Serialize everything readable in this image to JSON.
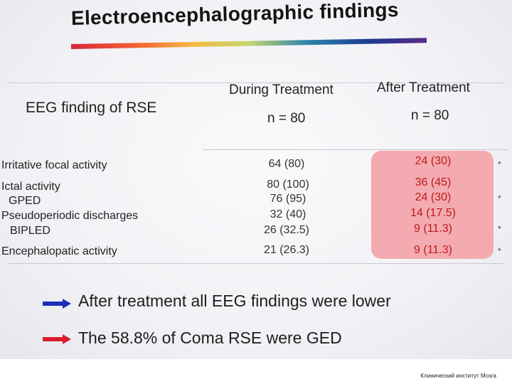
{
  "slide": {
    "title": "Electroencephalographic findings",
    "table": {
      "row_header": "EEG finding of RSE",
      "col_during": "During Treatment",
      "col_after": "After Treatment",
      "n_during": "n = 80",
      "n_after": "n = 80",
      "rows": [
        {
          "label": "Irritative focal activity",
          "during": "64 (80)",
          "after": "24 (30)",
          "star": "*"
        },
        {
          "label": "Ictal activity",
          "during": "80 (100)",
          "after": "36 (45)",
          "star": ""
        },
        {
          "label": "GPED",
          "during": "76 (95)",
          "after": "24 (30)",
          "star": "*"
        },
        {
          "label": "Pseudoperiodic discharges",
          "during": "32 (40)",
          "after": "14 (17.5)",
          "star": ""
        },
        {
          "label": "BIPLED",
          "during": "26 (32.5)",
          "after": "9 (11.3)",
          "star": "*"
        },
        {
          "label": "Encephalopatic activity",
          "during": "21 (26.3)",
          "after": "9 (11.3)",
          "star": "*"
        }
      ]
    },
    "bullets": [
      {
        "text": "After treatment all EEG findings were lower",
        "arrow_color": "#1a2fb8"
      },
      {
        "text": "The 58.8% of Coma RSE were GED",
        "arrow_color": "#d81c2c"
      }
    ]
  },
  "footer": {
    "text": "Клинический институт Мозга"
  }
}
